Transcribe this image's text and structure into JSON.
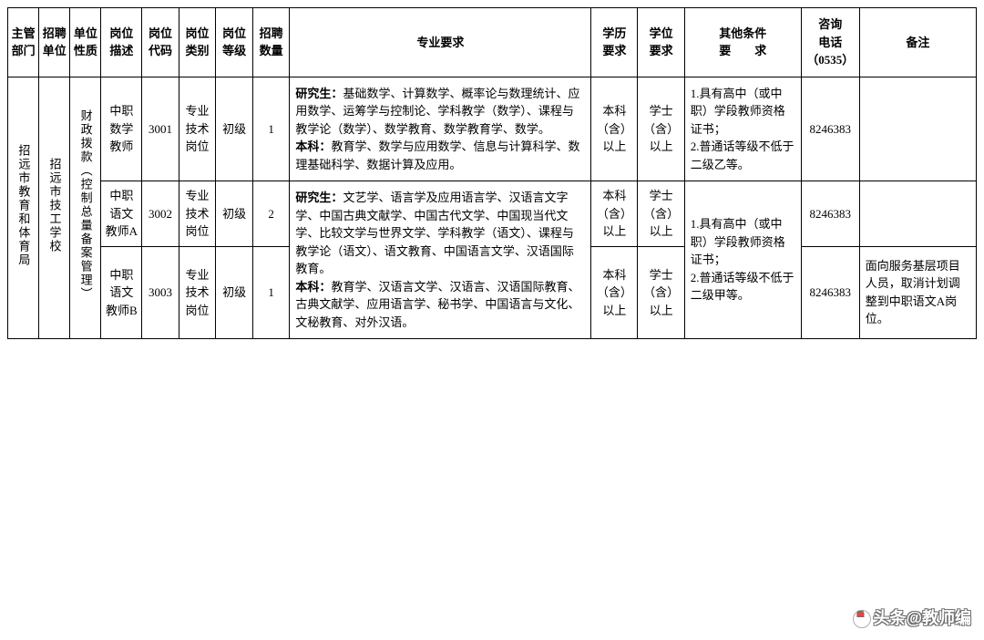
{
  "headers": {
    "dept": "主管\n部门",
    "unit": "招聘\n单位",
    "nature": "单位\n性质",
    "jobDesc": "岗位\n描述",
    "jobCode": "岗位\n代码",
    "jobType": "岗位\n类别",
    "jobLevel": "岗位\n等级",
    "count": "招聘\n数量",
    "majorReq": "专业要求",
    "eduReq": "学历\n要求",
    "degreeReq": "学位\n要求",
    "otherReq": "其他条件\n要　　求",
    "phone": "咨询\n电话\n（0535）",
    "note": "备注"
  },
  "merged": {
    "dept": "招远市教育和体育局",
    "unit": "招远市技工学校",
    "nature": "财政拨款（控制总量备案管理）"
  },
  "rows": {
    "r1": {
      "jobDesc": "中职\n数学\n教师",
      "jobCode": "3001",
      "jobType": "专业\n技术\n岗位",
      "jobLevel": "初级",
      "count": "1",
      "majorReq": "研究生：基础数学、计算数学、概率论与数理统计、应用数学、运筹学与控制论、学科教学（数学）、课程与教学论（数学）、数学教育、数学教育学、数学。\n本科：教育学、数学与应用数学、信息与计算科学、数理基础科学、数据计算及应用。",
      "eduReq": "本科\n（含）\n以上",
      "degreeReq": "学士\n（含）\n以上",
      "otherReq": "1.具有高中（或中职）学段教师资格证书；\n2.普通话等级不低于二级乙等。",
      "phone": "8246383",
      "note": ""
    },
    "r2": {
      "jobDesc": "中职\n语文\n教师A",
      "jobCode": "3002",
      "jobType": "专业\n技术\n岗位",
      "jobLevel": "初级",
      "count": "2",
      "eduReq": "本科\n（含）\n以上",
      "degreeReq": "学士\n（含）\n以上",
      "phone": "8246383",
      "note": ""
    },
    "shared23": {
      "majorReq": "研究生：文艺学、语言学及应用语言学、汉语言文字学、中国古典文献学、中国古代文学、中国现当代文学、比较文学与世界文学、学科教学（语文）、课程与教学论（语文）、语文教育、中国语言文学、汉语国际教育。\n本科：教育学、汉语言文学、汉语言、汉语国际教育、古典文献学、应用语言学、秘书学、中国语言与文化、文秘教育、对外汉语。",
      "otherReq": "1.具有高中（或中职）学段教师资格证书；\n2.普通话等级不低于二级甲等。"
    },
    "r3": {
      "jobDesc": "中职\n语文\n教师B",
      "jobCode": "3003",
      "jobType": "专业\n技术\n岗位",
      "jobLevel": "初级",
      "count": "1",
      "eduReq": "本科\n（含）\n以上",
      "degreeReq": "学士\n（含）\n以上",
      "phone": "8246383",
      "note": "面向服务基层项目人员，取消计划调整到中职语文A岗位。"
    }
  },
  "watermark": {
    "prefix": "头条",
    "at": "@教师编"
  }
}
